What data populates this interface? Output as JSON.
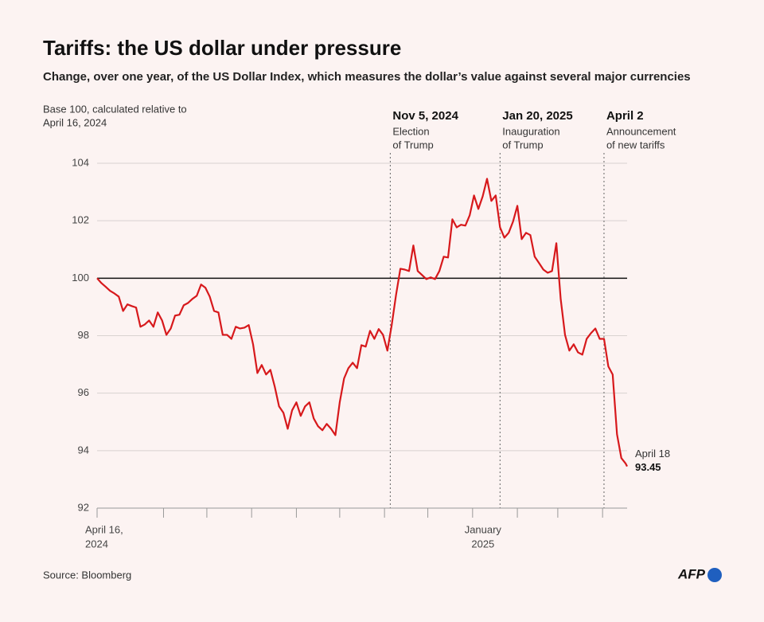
{
  "chart_data": {
    "type": "line",
    "title": "Tariffs: the US dollar under pressure",
    "subtitle": "Change, over one year, of the US Dollar Index, which measures the dollar’s value against several major currencies",
    "y_note": [
      "Base 100, calculated relative to",
      "April 16, 2024"
    ],
    "source": "Source: Bloomberg",
    "logo": "AFP",
    "color": "#d7191c",
    "baseline": 100,
    "grid": true,
    "ylim": [
      92,
      104
    ],
    "yticks": [
      92,
      94,
      96,
      98,
      100,
      102,
      104
    ],
    "xlim": [
      "2024-04-16",
      "2025-04-18"
    ],
    "xticks": [
      {
        "value": "2024-04-16",
        "label": [
          "April 16,",
          "2024"
        ]
      },
      {
        "value": "2024-06-01",
        "label": null
      },
      {
        "value": "2024-07-01",
        "label": null
      },
      {
        "value": "2024-08-01",
        "label": null
      },
      {
        "value": "2024-09-01",
        "label": null
      },
      {
        "value": "2024-10-01",
        "label": null
      },
      {
        "value": "2024-11-01",
        "label": null
      },
      {
        "value": "2024-12-01",
        "label": null
      },
      {
        "value": "2025-01-01",
        "label": [
          "January",
          "2025"
        ]
      },
      {
        "value": "2025-02-01",
        "label": null
      },
      {
        "value": "2025-03-01",
        "label": null
      },
      {
        "value": "2025-04-01",
        "label": null
      }
    ],
    "annotations": [
      {
        "x": "2024-11-05",
        "title": "Nov 5, 2024",
        "text": [
          "Election",
          "of Trump"
        ]
      },
      {
        "x": "2025-01-20",
        "title": "Jan 20, 2025",
        "text": [
          "Inauguration",
          "of Trump"
        ]
      },
      {
        "x": "2025-04-02",
        "title": "April 2",
        "text": [
          "Announcement",
          "of new tariffs"
        ]
      }
    ],
    "end_label": "April 18",
    "x": [
      "2024-04-16",
      "2024-04-19",
      "2024-04-22",
      "2024-04-25",
      "2024-04-28",
      "2024-05-01",
      "2024-05-04",
      "2024-05-07",
      "2024-05-10",
      "2024-05-13",
      "2024-05-16",
      "2024-05-19",
      "2024-05-22",
      "2024-05-25",
      "2024-05-28",
      "2024-05-31",
      "2024-06-03",
      "2024-06-06",
      "2024-06-09",
      "2024-06-12",
      "2024-06-15",
      "2024-06-18",
      "2024-06-21",
      "2024-06-24",
      "2024-06-27",
      "2024-06-30",
      "2024-07-03",
      "2024-07-06",
      "2024-07-09",
      "2024-07-12",
      "2024-07-15",
      "2024-07-18",
      "2024-07-21",
      "2024-07-24",
      "2024-07-27",
      "2024-07-30",
      "2024-08-02",
      "2024-08-05",
      "2024-08-08",
      "2024-08-11",
      "2024-08-14",
      "2024-08-17",
      "2024-08-20",
      "2024-08-23",
      "2024-08-26",
      "2024-08-29",
      "2024-09-01",
      "2024-09-04",
      "2024-09-07",
      "2024-09-10",
      "2024-09-13",
      "2024-09-16",
      "2024-09-19",
      "2024-09-22",
      "2024-09-25",
      "2024-09-28",
      "2024-10-01",
      "2024-10-04",
      "2024-10-07",
      "2024-10-10",
      "2024-10-13",
      "2024-10-16",
      "2024-10-19",
      "2024-10-22",
      "2024-10-25",
      "2024-10-28",
      "2024-10-31",
      "2024-11-03",
      "2024-11-06",
      "2024-11-09",
      "2024-11-12",
      "2024-11-15",
      "2024-11-18",
      "2024-11-21",
      "2024-11-24",
      "2024-11-27",
      "2024-11-30",
      "2024-12-03",
      "2024-12-06",
      "2024-12-09",
      "2024-12-12",
      "2024-12-15",
      "2024-12-18",
      "2024-12-21",
      "2024-12-24",
      "2024-12-27",
      "2024-12-30",
      "2025-01-02",
      "2025-01-05",
      "2025-01-08",
      "2025-01-11",
      "2025-01-14",
      "2025-01-17",
      "2025-01-20",
      "2025-01-23",
      "2025-01-26",
      "2025-01-29",
      "2025-02-01",
      "2025-02-04",
      "2025-02-07",
      "2025-02-10",
      "2025-02-13",
      "2025-02-16",
      "2025-02-19",
      "2025-02-22",
      "2025-02-25",
      "2025-02-28",
      "2025-03-03",
      "2025-03-06",
      "2025-03-09",
      "2025-03-12",
      "2025-03-15",
      "2025-03-18",
      "2025-03-21",
      "2025-03-24",
      "2025-03-27",
      "2025-03-30",
      "2025-04-02",
      "2025-04-05",
      "2025-04-08",
      "2025-04-11",
      "2025-04-14",
      "2025-04-17",
      "2025-04-18"
    ],
    "values": [
      100,
      99.83,
      99.7,
      99.56,
      99.47,
      99.36,
      98.86,
      99.09,
      99.03,
      98.98,
      98.31,
      98.39,
      98.53,
      98.31,
      98.81,
      98.53,
      98.03,
      98.25,
      98.7,
      98.73,
      99.06,
      99.14,
      99.28,
      99.39,
      99.78,
      99.67,
      99.36,
      98.86,
      98.81,
      98.03,
      98.03,
      97.89,
      98.31,
      98.25,
      98.28,
      98.37,
      97.7,
      96.7,
      96.98,
      96.65,
      96.81,
      96.23,
      95.54,
      95.32,
      94.76,
      95.4,
      95.68,
      95.21,
      95.54,
      95.68,
      95.12,
      94.85,
      94.71,
      94.93,
      94.76,
      94.54,
      95.68,
      96.51,
      96.87,
      97.06,
      96.87,
      97.67,
      97.62,
      98.17,
      97.89,
      98.23,
      98.03,
      97.48,
      98.37,
      99.42,
      100.33,
      100.3,
      100.25,
      101.14,
      100.25,
      100.11,
      99.97,
      100.03,
      99.97,
      100.25,
      100.75,
      100.72,
      102.05,
      101.77,
      101.86,
      101.83,
      102.19,
      102.88,
      102.41,
      102.85,
      103.46,
      102.69,
      102.88,
      101.77,
      101.41,
      101.58,
      101.97,
      102.52,
      101.36,
      101.58,
      101.5,
      100.75,
      100.53,
      100.3,
      100.19,
      100.25,
      101.22,
      99.28,
      98.03,
      97.48,
      97.7,
      97.42,
      97.34,
      97.89,
      98.09,
      98.25,
      97.89,
      97.89,
      96.93,
      96.65,
      94.57,
      93.74,
      93.55,
      93.45
    ]
  }
}
